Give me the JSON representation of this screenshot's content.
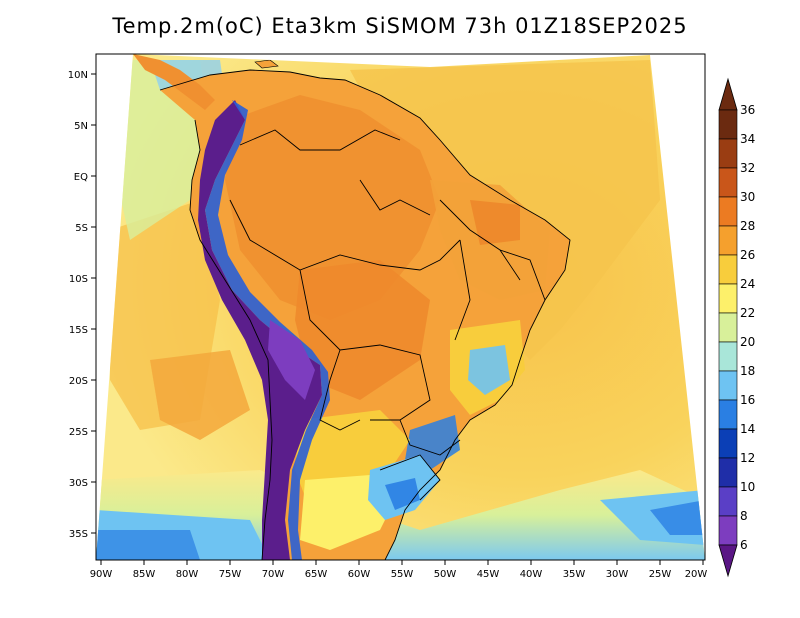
{
  "title": "Temp.2m(oC) Eta3km SiSMOM 73h 01Z18SEP2025",
  "lat_labels": [
    "10N",
    "5N",
    "EQ",
    "5S",
    "10S",
    "15S",
    "20S",
    "25S",
    "30S",
    "35S"
  ],
  "lon_labels": [
    "90W",
    "85W",
    "80W",
    "75W",
    "70W",
    "65W",
    "60W",
    "55W",
    "50W",
    "45W",
    "40W",
    "35W",
    "30W",
    "25W",
    "20W"
  ],
  "colorbar": {
    "labels": [
      "36",
      "34",
      "32",
      "30",
      "28",
      "26",
      "24",
      "22",
      "20",
      "18",
      "16",
      "14",
      "12",
      "10",
      "8",
      "6"
    ],
    "colors": [
      "#6b2a10",
      "#9a3d12",
      "#c9561a",
      "#ec7b22",
      "#f5a02d",
      "#f8cd3c",
      "#fdf06a",
      "#d8f09a",
      "#a9e6d9",
      "#6ec3f2",
      "#2a7fe3",
      "#0b3fb6",
      "#1f2ea8",
      "#5a3fc6",
      "#7d3dbf",
      "#5a1685"
    ]
  },
  "colors": {
    "ocean_warm": "#f6b14a",
    "ocean_mid": "#f9d35c",
    "ocean_cool": "#fbe98a",
    "land_hot": "#f08c2e",
    "land_warm": "#f5a83a",
    "andes_cold": "#5b1e8c",
    "andes_cool": "#2a5fd6",
    "southern_cold": "#6ec3f2",
    "border": "#000000"
  }
}
